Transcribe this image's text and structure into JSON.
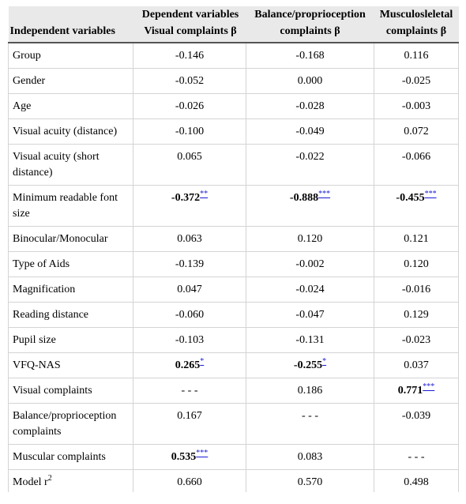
{
  "header": {
    "row1": [
      "",
      "Dependent variables",
      "Balance/proprioception",
      "Musculosleletal"
    ],
    "row2": [
      "Independent variables",
      "Visual complaints β",
      "complaints β",
      "complaints β"
    ]
  },
  "rows": [
    {
      "label": "Group",
      "values": [
        "-0.146",
        "-0.168",
        "0.116"
      ]
    },
    {
      "label": "Gender",
      "values": [
        "-0.052",
        "0.000",
        "-0.025"
      ]
    },
    {
      "label": "Age",
      "values": [
        "-0.026",
        "-0.028",
        "-0.003"
      ]
    },
    {
      "label": "Visual acuity (distance)",
      "values": [
        "-0.100",
        "-0.049",
        "0.072"
      ]
    },
    {
      "label": "Visual acuity (short distance)",
      "values": [
        "0.065",
        "-0.022",
        "-0.066"
      ]
    },
    {
      "label": "Minimum readable font size",
      "values": [
        "-0.372",
        "-0.888",
        "-0.455"
      ],
      "sig": [
        "**",
        "***",
        "***"
      ]
    },
    {
      "label": "Binocular/Monocular",
      "values": [
        "0.063",
        "0.120",
        "0.121"
      ]
    },
    {
      "label": "Type of Aids",
      "values": [
        "-0.139",
        "-0.002",
        "0.120"
      ]
    },
    {
      "label": "Magnification",
      "values": [
        "0.047",
        "-0.024",
        "-0.016"
      ]
    },
    {
      "label": "Reading distance",
      "values": [
        "-0.060",
        "-0.047",
        "0.129"
      ]
    },
    {
      "label": "Pupil size",
      "values": [
        "-0.103",
        "-0.131",
        "-0.023"
      ]
    },
    {
      "label": "VFQ-NAS",
      "values": [
        "0.265",
        "-0.255",
        "0.037"
      ],
      "sig": [
        "*",
        "*",
        ""
      ]
    },
    {
      "label": "Visual complaints",
      "values": [
        "- - -",
        "0.186",
        "0.771"
      ],
      "sig": [
        "",
        "",
        "***"
      ]
    },
    {
      "label": "Balance/proprioception complaints",
      "values": [
        "0.167",
        "- - -",
        "-0.039"
      ]
    },
    {
      "label": "Muscular complaints",
      "values": [
        "0.535",
        "0.083",
        "- - -"
      ],
      "sig": [
        "***",
        "",
        ""
      ]
    }
  ],
  "model": {
    "label": "Model r",
    "exponent": "2",
    "values": [
      "0.660",
      "0.570",
      "0.498"
    ]
  }
}
